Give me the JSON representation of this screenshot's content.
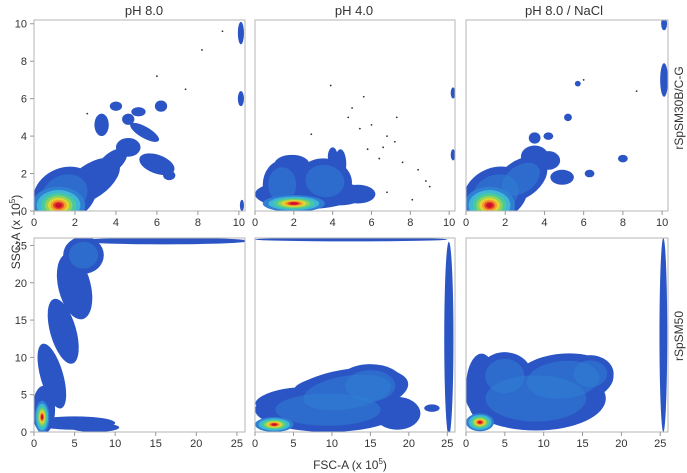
{
  "chart_data": {
    "type": "density_contour_grid",
    "columns": [
      "pH 8.0",
      "pH 4.0",
      "pH 8.0 / NaCl"
    ],
    "rows": [
      "rSpSM30B/C-G",
      "rSpSM50"
    ],
    "xlabel": "FSC-A (x 10",
    "ylabel": "SSC-A (x 10",
    "exponent": "5",
    "axes": {
      "row1": {
        "xlim": [
          0,
          10.3
        ],
        "ylim": [
          0,
          10.2
        ],
        "xticks": [
          0,
          2,
          4,
          6,
          8,
          10
        ],
        "yticks": [
          0,
          2,
          4,
          6,
          8,
          10
        ]
      },
      "row2": {
        "xlim": [
          0,
          26
        ],
        "ylim": [
          0,
          26
        ],
        "xticks": [
          0,
          5,
          10,
          15,
          20,
          25
        ],
        "yticks": [
          0,
          5,
          10,
          15,
          20,
          25
        ]
      }
    },
    "density_colors": [
      "#2b55c4",
      "#2f7fd3",
      "#3fb6d6",
      "#48c9a0",
      "#8fd45a",
      "#e2d633",
      "#f2a02a",
      "#e8462a",
      "#c8102e"
    ],
    "panels": [
      {
        "row": 0,
        "col": 0,
        "blobs": [
          {
            "x": 1.5,
            "y": 0.9,
            "rx": 1.6,
            "ry": 1.4,
            "rot": -25
          },
          {
            "x": 2.8,
            "y": 1.6,
            "rx": 1.6,
            "ry": 0.9,
            "rot": -35
          },
          {
            "x": 3.8,
            "y": 2.6,
            "rx": 0.9,
            "ry": 0.5,
            "rot": -40
          },
          {
            "x": 4.6,
            "y": 3.4,
            "rx": 0.6,
            "ry": 0.5,
            "rot": 0
          },
          {
            "x": 5.4,
            "y": 4.2,
            "rx": 0.8,
            "ry": 0.3,
            "rot": 30
          },
          {
            "x": 6.0,
            "y": 2.5,
            "rx": 0.9,
            "ry": 0.5,
            "rot": 20
          },
          {
            "x": 6.6,
            "y": 1.9,
            "rx": 0.3,
            "ry": 0.25,
            "rot": 0
          },
          {
            "x": 5.1,
            "y": 5.3,
            "rx": 0.35,
            "ry": 0.25,
            "rot": 0
          },
          {
            "x": 6.2,
            "y": 5.6,
            "rx": 0.3,
            "ry": 0.3,
            "rot": 0
          },
          {
            "x": 3.3,
            "y": 4.6,
            "rx": 0.35,
            "ry": 0.6,
            "rot": 0
          },
          {
            "x": 4.6,
            "y": 4.9,
            "rx": 0.3,
            "ry": 0.3,
            "rot": 0
          },
          {
            "x": 4.0,
            "y": 5.6,
            "rx": 0.3,
            "ry": 0.25,
            "rot": 0
          },
          {
            "x": 10.1,
            "y": 6.0,
            "rx": 0.15,
            "ry": 0.4,
            "rot": 0
          },
          {
            "x": 10.1,
            "y": 9.5,
            "rx": 0.15,
            "ry": 0.6,
            "rot": 0
          },
          {
            "x": 10.15,
            "y": 0.3,
            "rx": 0.1,
            "ry": 0.3,
            "rot": 0
          }
        ],
        "core": {
          "x": 1.2,
          "y": 0.3,
          "rx": 1.3,
          "ry": 1.0
        },
        "dots": [
          [
            8.2,
            8.6
          ],
          [
            7.4,
            6.5
          ],
          [
            6.0,
            7.2
          ],
          [
            9.2,
            9.6
          ],
          [
            2.6,
            5.2
          ]
        ]
      },
      {
        "row": 0,
        "col": 1,
        "blobs": [
          {
            "x": 2.6,
            "y": 0.9,
            "rx": 2.6,
            "ry": 0.8,
            "rot": 0
          },
          {
            "x": 1.4,
            "y": 1.4,
            "rx": 1.0,
            "ry": 1.3,
            "rot": 0
          },
          {
            "x": 3.6,
            "y": 1.6,
            "rx": 1.4,
            "ry": 1.2,
            "rot": 10
          },
          {
            "x": 4.4,
            "y": 0.9,
            "rx": 1.2,
            "ry": 0.6,
            "rot": 0
          },
          {
            "x": 5.3,
            "y": 0.9,
            "rx": 0.9,
            "ry": 0.5,
            "rot": 0
          },
          {
            "x": 4.4,
            "y": 2.5,
            "rx": 0.3,
            "ry": 0.8,
            "rot": 0
          },
          {
            "x": 4.0,
            "y": 2.9,
            "rx": 0.25,
            "ry": 0.5,
            "rot": 0
          },
          {
            "x": 1.9,
            "y": 2.5,
            "rx": 0.9,
            "ry": 0.5,
            "rot": 0
          },
          {
            "x": 10.2,
            "y": 6.3,
            "rx": 0.12,
            "ry": 0.3,
            "rot": 0
          },
          {
            "x": 10.2,
            "y": 3.0,
            "rx": 0.12,
            "ry": 0.3,
            "rot": 0
          }
        ],
        "core": {
          "x": 2.0,
          "y": 0.4,
          "rx": 1.6,
          "ry": 0.45
        },
        "dots": [
          [
            5.0,
            5.5
          ],
          [
            6.6,
            3.4
          ],
          [
            7.2,
            3.7
          ],
          [
            8.4,
            2.2
          ],
          [
            5.4,
            4.4
          ],
          [
            6.0,
            4.6
          ],
          [
            7.3,
            5.0
          ],
          [
            2.9,
            4.1
          ],
          [
            5.8,
            3.3
          ],
          [
            6.4,
            2.8
          ],
          [
            7.6,
            2.6
          ],
          [
            8.8,
            1.6
          ],
          [
            6.8,
            1.0
          ],
          [
            8.1,
            0.6
          ],
          [
            9.0,
            1.3
          ],
          [
            4.8,
            5.0
          ],
          [
            6.8,
            4.0
          ],
          [
            3.9,
            6.7
          ],
          [
            5.6,
            6.1
          ]
        ]
      },
      {
        "row": 0,
        "col": 2,
        "blobs": [
          {
            "x": 1.5,
            "y": 0.9,
            "rx": 1.7,
            "ry": 1.4,
            "rot": -25
          },
          {
            "x": 2.8,
            "y": 1.7,
            "rx": 1.5,
            "ry": 1.0,
            "rot": -35
          },
          {
            "x": 3.5,
            "y": 2.9,
            "rx": 0.7,
            "ry": 0.6,
            "rot": 0
          },
          {
            "x": 4.2,
            "y": 2.7,
            "rx": 0.6,
            "ry": 0.5,
            "rot": 0
          },
          {
            "x": 4.9,
            "y": 1.8,
            "rx": 0.6,
            "ry": 0.4,
            "rot": 0
          },
          {
            "x": 3.5,
            "y": 3.9,
            "rx": 0.3,
            "ry": 0.3,
            "rot": 0
          },
          {
            "x": 4.2,
            "y": 4.0,
            "rx": 0.25,
            "ry": 0.2,
            "rot": 0
          },
          {
            "x": 6.3,
            "y": 2.0,
            "rx": 0.25,
            "ry": 0.2,
            "rot": 0
          },
          {
            "x": 5.2,
            "y": 5.0,
            "rx": 0.2,
            "ry": 0.2,
            "rot": 0
          },
          {
            "x": 8.0,
            "y": 2.8,
            "rx": 0.25,
            "ry": 0.2,
            "rot": 0
          },
          {
            "x": 10.1,
            "y": 7.0,
            "rx": 0.2,
            "ry": 0.9,
            "rot": 0
          },
          {
            "x": 10.1,
            "y": 10.0,
            "rx": 0.15,
            "ry": 0.35,
            "rot": 0
          },
          {
            "x": 5.7,
            "y": 6.8,
            "rx": 0.15,
            "ry": 0.15,
            "rot": 0
          }
        ],
        "core": {
          "x": 1.2,
          "y": 0.3,
          "rx": 1.3,
          "ry": 1.0
        },
        "dots": [
          [
            6.0,
            7.0
          ],
          [
            8.7,
            6.4
          ]
        ]
      },
      {
        "row": 1,
        "col": 0,
        "blobs": [
          {
            "x": 1.2,
            "y": 3.0,
            "rx": 1.4,
            "ry": 3.2,
            "rot": 0
          },
          {
            "x": 2.2,
            "y": 7.5,
            "rx": 1.4,
            "ry": 4.5,
            "rot": -16
          },
          {
            "x": 3.6,
            "y": 13.5,
            "rx": 1.6,
            "ry": 4.5,
            "rot": -16
          },
          {
            "x": 5.0,
            "y": 19.5,
            "rx": 2.0,
            "ry": 4.5,
            "rot": -14
          },
          {
            "x": 6.1,
            "y": 23.7,
            "rx": 2.5,
            "ry": 2.5,
            "rot": 0
          },
          {
            "x": 16.0,
            "y": 25.6,
            "rx": 10.5,
            "ry": 0.45,
            "rot": 0
          },
          {
            "x": 5.0,
            "y": 1.2,
            "rx": 5.0,
            "ry": 0.9,
            "rot": 0
          },
          {
            "x": 7.5,
            "y": 0.6,
            "rx": 3.0,
            "ry": 0.6,
            "rot": 0
          }
        ],
        "core": {
          "x": 1.0,
          "y": 2.0,
          "rx": 0.9,
          "ry": 2.2
        },
        "dots": []
      },
      {
        "row": 1,
        "col": 1,
        "blobs": [
          {
            "x": 9.5,
            "y": 3.0,
            "rx": 9.5,
            "ry": 3.0,
            "rot": 0
          },
          {
            "x": 12.0,
            "y": 5.3,
            "rx": 8.0,
            "ry": 3.1,
            "rot": -9
          },
          {
            "x": 15.0,
            "y": 6.2,
            "rx": 4.5,
            "ry": 2.9,
            "rot": 0
          },
          {
            "x": 9.0,
            "y": 6.3,
            "rx": 4.0,
            "ry": 1.2,
            "rot": -10
          },
          {
            "x": 4.0,
            "y": 4.5,
            "rx": 4.0,
            "ry": 1.3,
            "rot": -10
          },
          {
            "x": 18.5,
            "y": 2.5,
            "rx": 3.0,
            "ry": 2.2,
            "rot": 0
          },
          {
            "x": 25.2,
            "y": 12.5,
            "rx": 0.6,
            "ry": 13.0,
            "rot": 0
          },
          {
            "x": 23.0,
            "y": 3.2,
            "rx": 1.0,
            "ry": 0.5,
            "rot": 0
          },
          {
            "x": 12.5,
            "y": 25.8,
            "rx": 12.5,
            "ry": 0.25,
            "rot": 0
          }
        ],
        "core": {
          "x": 2.5,
          "y": 1.0,
          "rx": 2.5,
          "ry": 1.0
        },
        "dots": []
      },
      {
        "row": 1,
        "col": 2,
        "blobs": [
          {
            "x": 9.0,
            "y": 4.5,
            "rx": 9.0,
            "ry": 4.3,
            "rot": 0
          },
          {
            "x": 12.5,
            "y": 7.0,
            "rx": 6.5,
            "ry": 3.5,
            "rot": -5
          },
          {
            "x": 16.0,
            "y": 7.8,
            "rx": 3.0,
            "ry": 2.5,
            "rot": 0
          },
          {
            "x": 5.0,
            "y": 7.5,
            "rx": 3.5,
            "ry": 3.2,
            "rot": 0
          },
          {
            "x": 2.0,
            "y": 6.0,
            "rx": 2.0,
            "ry": 4.5,
            "rot": 0
          },
          {
            "x": 25.4,
            "y": 13.0,
            "rx": 0.5,
            "ry": 13.0,
            "rot": 0
          }
        ],
        "core": {
          "x": 1.8,
          "y": 1.3,
          "rx": 1.8,
          "ry": 1.2
        },
        "dots": []
      }
    ]
  }
}
